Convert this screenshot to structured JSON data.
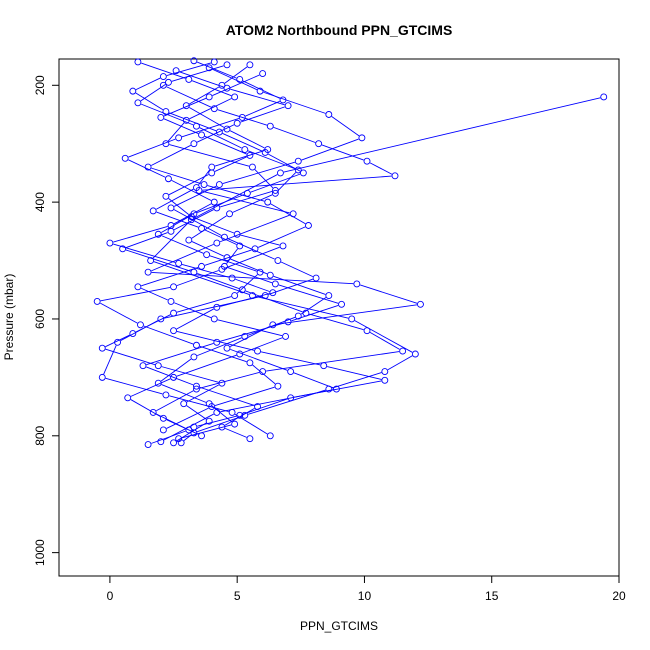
{
  "chart_data": {
    "type": "scatter",
    "title": "ATOM2 Northbound PPN_GTCIMS",
    "xlabel": "PPN_GTCIMS",
    "ylabel": "Pressure (mbar)",
    "xlim": [
      -2,
      20
    ],
    "ylim": [
      1040,
      155
    ],
    "y_reversed": true,
    "x_ticks": [
      0,
      5,
      10,
      15,
      20
    ],
    "y_ticks": [
      200,
      400,
      600,
      800,
      1000
    ],
    "grid": false,
    "legend": "none",
    "series_color": "#0000ff",
    "marker": "open-circle",
    "series": [
      {
        "profile_id": 1,
        "points": [
          [
            2.1,
            200
          ],
          [
            4.1,
            240
          ],
          [
            6.3,
            270
          ],
          [
            8.2,
            300
          ],
          [
            10.1,
            330
          ],
          [
            11.2,
            355
          ],
          [
            3.5,
            380
          ],
          [
            7.2,
            420
          ],
          [
            4.2,
            470
          ],
          [
            1.5,
            520
          ],
          [
            9.7,
            540
          ],
          [
            12.2,
            575
          ],
          [
            6.4,
            610
          ],
          [
            4.6,
            650
          ],
          [
            7.1,
            690
          ],
          [
            8.9,
            720
          ],
          [
            4.2,
            760
          ],
          [
            2.0,
            810
          ]
        ]
      },
      {
        "profile_id": 2,
        "points": [
          [
            1.1,
            160
          ],
          [
            3.1,
            190
          ],
          [
            4.9,
            220
          ],
          [
            3.0,
            260
          ],
          [
            2.2,
            300
          ],
          [
            5.6,
            340
          ],
          [
            6.5,
            380
          ],
          [
            4.2,
            410
          ],
          [
            2.4,
            450
          ],
          [
            0.5,
            480
          ],
          [
            3.3,
            520
          ],
          [
            5.2,
            550
          ],
          [
            7.7,
            590
          ],
          [
            10.1,
            620
          ],
          [
            11.5,
            655
          ],
          [
            6.0,
            690
          ],
          [
            3.4,
            720
          ],
          [
            1.7,
            760
          ],
          [
            3.1,
            790
          ],
          [
            1.5,
            815
          ]
        ]
      },
      {
        "profile_id": 3,
        "points": [
          [
            3.9,
            170
          ],
          [
            5.9,
            210
          ],
          [
            8.6,
            250
          ],
          [
            9.9,
            290
          ],
          [
            7.4,
            330
          ],
          [
            4.3,
            370
          ],
          [
            2.4,
            410
          ],
          [
            4.5,
            460
          ],
          [
            6.6,
            500
          ],
          [
            8.1,
            530
          ],
          [
            6.1,
            560
          ],
          [
            2.0,
            600
          ],
          [
            0.3,
            640
          ],
          [
            -0.3,
            700
          ],
          [
            2.2,
            730
          ],
          [
            4.8,
            760
          ],
          [
            6.3,
            800
          ]
        ]
      },
      {
        "profile_id": 4,
        "points": [
          [
            19.4,
            220
          ],
          [
            6.7,
            350
          ],
          [
            3.2,
            430
          ],
          [
            1.6,
            500
          ],
          [
            5.6,
            560
          ],
          [
            9.5,
            600
          ],
          [
            12.0,
            660
          ],
          [
            10.8,
            690
          ],
          [
            8.6,
            720
          ],
          [
            5.3,
            765
          ],
          [
            3.3,
            795
          ],
          [
            2.8,
            812
          ]
        ]
      },
      {
        "profile_id": 5,
        "points": [
          [
            2.6,
            175
          ],
          [
            4.6,
            205
          ],
          [
            7.0,
            235
          ],
          [
            5.0,
            265
          ],
          [
            3.3,
            300
          ],
          [
            1.5,
            340
          ],
          [
            3.7,
            370
          ],
          [
            6.2,
            400
          ],
          [
            7.8,
            440
          ],
          [
            5.7,
            480
          ],
          [
            3.6,
            510
          ],
          [
            1.1,
            545
          ],
          [
            2.4,
            570
          ],
          [
            4.1,
            600
          ],
          [
            6.9,
            630
          ],
          [
            5.1,
            660
          ],
          [
            2.5,
            700
          ],
          [
            0.7,
            735
          ],
          [
            2.1,
            770
          ],
          [
            3.6,
            800
          ]
        ]
      },
      {
        "profile_id": 6,
        "points": [
          [
            4.6,
            165
          ],
          [
            2.3,
            195
          ],
          [
            1.1,
            230
          ],
          [
            3.4,
            270
          ],
          [
            5.3,
            310
          ],
          [
            7.4,
            345
          ],
          [
            6.5,
            385
          ],
          [
            4.7,
            420
          ],
          [
            3.1,
            465
          ],
          [
            4.6,
            495
          ],
          [
            6.3,
            525
          ],
          [
            8.6,
            560
          ],
          [
            7.4,
            595
          ],
          [
            5.3,
            630
          ],
          [
            3.3,
            665
          ],
          [
            1.9,
            710
          ],
          [
            3.9,
            745
          ],
          [
            4.9,
            780
          ],
          [
            2.7,
            805
          ]
        ]
      },
      {
        "profile_id": 7,
        "points": [
          [
            6.0,
            180
          ],
          [
            3.9,
            220
          ],
          [
            2.0,
            255
          ],
          [
            3.6,
            285
          ],
          [
            5.5,
            320
          ],
          [
            4.0,
            350
          ],
          [
            2.2,
            390
          ],
          [
            3.2,
            425
          ],
          [
            5.0,
            455
          ],
          [
            6.8,
            475
          ],
          [
            4.4,
            515
          ],
          [
            2.5,
            545
          ],
          [
            -0.5,
            570
          ],
          [
            1.2,
            610
          ],
          [
            3.4,
            645
          ],
          [
            5.5,
            675
          ],
          [
            6.6,
            715
          ],
          [
            4.0,
            750
          ],
          [
            2.1,
            790
          ]
        ]
      },
      {
        "profile_id": 8,
        "points": [
          [
            3.3,
            158
          ],
          [
            5.1,
            190
          ],
          [
            6.8,
            225
          ],
          [
            5.2,
            255
          ],
          [
            2.7,
            290
          ],
          [
            0.6,
            325
          ],
          [
            2.3,
            360
          ],
          [
            4.1,
            400
          ],
          [
            2.4,
            440
          ],
          [
            0.0,
            470
          ],
          [
            2.7,
            505
          ],
          [
            4.8,
            530
          ],
          [
            6.4,
            555
          ],
          [
            4.2,
            580
          ],
          [
            2.5,
            620
          ],
          [
            5.8,
            655
          ],
          [
            8.4,
            680
          ],
          [
            10.8,
            705
          ],
          [
            7.1,
            735
          ],
          [
            5.1,
            765
          ],
          [
            3.3,
            785
          ]
        ]
      },
      {
        "profile_id": 9,
        "points": [
          [
            5.5,
            165
          ],
          [
            4.4,
            200
          ],
          [
            3.0,
            235
          ],
          [
            4.6,
            275
          ],
          [
            6.2,
            310
          ],
          [
            4.0,
            340
          ],
          [
            3.4,
            375
          ],
          [
            1.7,
            415
          ],
          [
            3.6,
            445
          ],
          [
            5.1,
            475
          ],
          [
            4.5,
            510
          ],
          [
            6.5,
            540
          ],
          [
            9.1,
            575
          ],
          [
            7.0,
            605
          ],
          [
            4.2,
            640
          ],
          [
            1.3,
            680
          ],
          [
            3.4,
            715
          ],
          [
            5.8,
            750
          ],
          [
            4.4,
            785
          ],
          [
            5.5,
            805
          ]
        ]
      },
      {
        "profile_id": 10,
        "points": [
          [
            4.1,
            160
          ],
          [
            2.1,
            185
          ],
          [
            0.9,
            210
          ],
          [
            2.2,
            245
          ],
          [
            4.3,
            280
          ],
          [
            6.1,
            315
          ],
          [
            7.6,
            350
          ],
          [
            5.4,
            385
          ],
          [
            3.3,
            420
          ],
          [
            1.9,
            455
          ],
          [
            3.8,
            490
          ],
          [
            5.9,
            520
          ],
          [
            4.9,
            560
          ],
          [
            2.5,
            590
          ],
          [
            0.9,
            625
          ],
          [
            -0.3,
            650
          ],
          [
            1.9,
            680
          ],
          [
            4.4,
            710
          ],
          [
            2.9,
            745
          ],
          [
            3.9,
            775
          ],
          [
            2.5,
            812
          ]
        ]
      }
    ]
  }
}
